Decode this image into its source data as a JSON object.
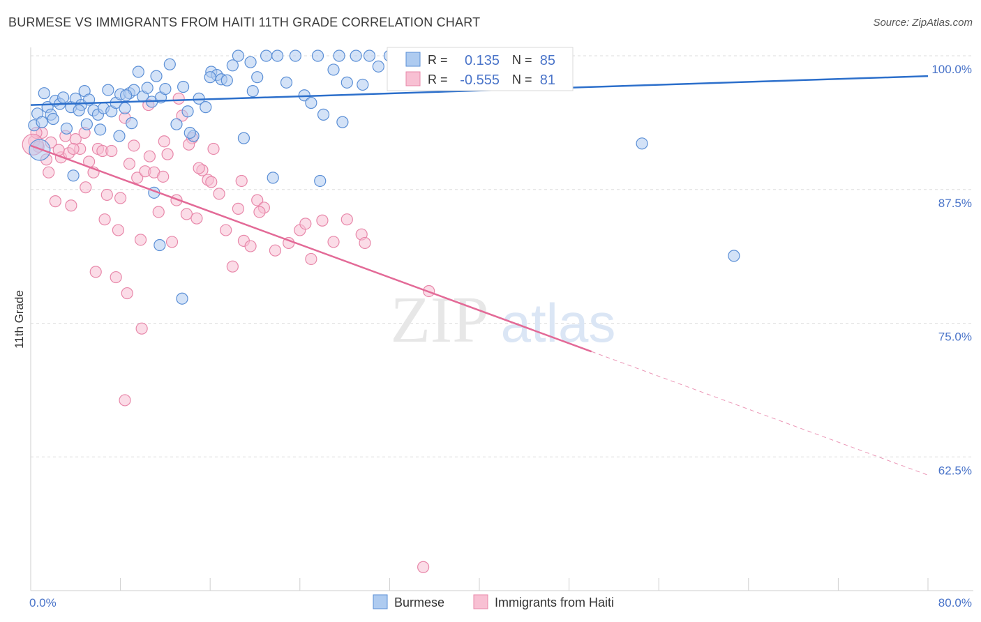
{
  "header": {
    "title": "BURMESE VS IMMIGRANTS FROM HAITI 11TH GRADE CORRELATION CHART",
    "source": "Source: ZipAtlas.com"
  },
  "watermark": {
    "zip": "ZIP",
    "atlas": "atlas"
  },
  "colors": {
    "burmese_fill": "#aecbf0",
    "burmese_stroke": "#5b8fd6",
    "burmese_line": "#2c6fcb",
    "haiti_fill": "#f8c0d3",
    "haiti_stroke": "#e888aa",
    "haiti_line": "#e36a97",
    "grid": "#dddddd",
    "axis_label": "#4a74c9"
  },
  "legend": {
    "rows": [
      {
        "r_label": "R =",
        "r_value": "0.135",
        "n_label": "N =",
        "n_value": "85"
      },
      {
        "r_label": "R =",
        "r_value": "-0.555",
        "n_label": "N =",
        "n_value": "81"
      }
    ]
  },
  "chart_data": {
    "type": "scatter",
    "title": "BURMESE VS IMMIGRANTS FROM HAITI 11TH GRADE CORRELATION CHART",
    "xlabel": "",
    "ylabel": "11th Grade",
    "xlim": [
      0,
      80
    ],
    "ylim": [
      50,
      100
    ],
    "x_ticks": [
      "0.0%",
      "80.0%"
    ],
    "y_ticks": [
      {
        "value": 100,
        "label": "100.0%"
      },
      {
        "value": 87.5,
        "label": "87.5%"
      },
      {
        "value": 75,
        "label": "75.0%"
      },
      {
        "value": 62.5,
        "label": "62.5%"
      }
    ],
    "grid": true,
    "legend_position": "top-center",
    "series": [
      {
        "name": "Burmese",
        "color": "#aecbf0",
        "trend": {
          "x": [
            0,
            80
          ],
          "y": [
            95.4,
            98.1
          ],
          "dashed_from": null
        },
        "points": [
          [
            0.3,
            93.5
          ],
          [
            0.6,
            94.6
          ],
          [
            1.0,
            93.8
          ],
          [
            1.5,
            95.2
          ],
          [
            1.8,
            94.5
          ],
          [
            2.2,
            95.8
          ],
          [
            2.6,
            95.5
          ],
          [
            2.9,
            96.1
          ],
          [
            3.2,
            93.2
          ],
          [
            3.6,
            95.2
          ],
          [
            4.0,
            96.0
          ],
          [
            4.5,
            95.4
          ],
          [
            4.8,
            96.7
          ],
          [
            5.2,
            95.9
          ],
          [
            5.6,
            94.9
          ],
          [
            6.0,
            94.5
          ],
          [
            6.5,
            95.1
          ],
          [
            6.9,
            96.8
          ],
          [
            7.2,
            94.8
          ],
          [
            7.6,
            95.6
          ],
          [
            8.0,
            96.4
          ],
          [
            8.4,
            95.1
          ],
          [
            8.8,
            96.5
          ],
          [
            9.2,
            96.8
          ],
          [
            9.6,
            98.5
          ],
          [
            10.0,
            96.2
          ],
          [
            10.4,
            97.0
          ],
          [
            10.8,
            95.7
          ],
          [
            11.2,
            98.1
          ],
          [
            11.6,
            96.1
          ],
          [
            12.0,
            96.9
          ],
          [
            12.4,
            99.2
          ],
          [
            13.0,
            93.6
          ],
          [
            13.6,
            97.1
          ],
          [
            14.0,
            94.8
          ],
          [
            14.5,
            92.5
          ],
          [
            15.0,
            96.0
          ],
          [
            15.6,
            95.2
          ],
          [
            16.1,
            98.5
          ],
          [
            16.6,
            98.2
          ],
          [
            17.0,
            97.8
          ],
          [
            17.5,
            97.7
          ],
          [
            18.0,
            99.1
          ],
          [
            18.5,
            100.0
          ],
          [
            19.0,
            92.3
          ],
          [
            19.6,
            99.4
          ],
          [
            20.2,
            98.0
          ],
          [
            21.0,
            100.0
          ],
          [
            22.0,
            100.0
          ],
          [
            22.8,
            97.5
          ],
          [
            23.6,
            100.0
          ],
          [
            24.4,
            96.3
          ],
          [
            25.0,
            95.6
          ],
          [
            25.6,
            100.0
          ],
          [
            26.1,
            94.5
          ],
          [
            27.0,
            98.7
          ],
          [
            27.5,
            100.0
          ],
          [
            28.2,
            97.5
          ],
          [
            29.0,
            100.0
          ],
          [
            29.6,
            97.3
          ],
          [
            30.2,
            100.0
          ],
          [
            31.0,
            99.0
          ],
          [
            32.0,
            100.0
          ],
          [
            33.0,
            100.0
          ],
          [
            34.2,
            100.0
          ],
          [
            1.2,
            96.5
          ],
          [
            2.0,
            94.1
          ],
          [
            3.8,
            88.8
          ],
          [
            4.3,
            94.9
          ],
          [
            5.0,
            93.6
          ],
          [
            6.2,
            93.1
          ],
          [
            7.9,
            92.5
          ],
          [
            8.5,
            96.3
          ],
          [
            9.0,
            93.7
          ],
          [
            11.0,
            87.2
          ],
          [
            11.5,
            82.3
          ],
          [
            13.5,
            77.3
          ],
          [
            14.2,
            92.8
          ],
          [
            16.0,
            98.0
          ],
          [
            19.8,
            96.7
          ],
          [
            21.6,
            88.6
          ],
          [
            25.8,
            88.3
          ],
          [
            27.8,
            93.8
          ],
          [
            54.5,
            91.8
          ],
          [
            62.7,
            81.3
          ],
          [
            0.8,
            91.2
          ]
        ]
      },
      {
        "name": "Immigrants from Haiti",
        "color": "#f8c0d3",
        "trend": {
          "x": [
            0,
            80
          ],
          "y": [
            91.6,
            60.8
          ],
          "dashed_from": 50
        },
        "points": [
          [
            0.3,
            92.0
          ],
          [
            0.7,
            91.5
          ],
          [
            1.0,
            92.8
          ],
          [
            1.4,
            90.3
          ],
          [
            1.8,
            91.9
          ],
          [
            2.2,
            86.4
          ],
          [
            2.7,
            90.5
          ],
          [
            3.1,
            92.5
          ],
          [
            3.4,
            90.9
          ],
          [
            3.6,
            86.0
          ],
          [
            4.0,
            92.2
          ],
          [
            4.4,
            91.3
          ],
          [
            4.8,
            92.8
          ],
          [
            5.2,
            90.1
          ],
          [
            5.6,
            89.1
          ],
          [
            6.0,
            91.3
          ],
          [
            6.4,
            91.1
          ],
          [
            6.8,
            87.0
          ],
          [
            7.2,
            91.1
          ],
          [
            7.6,
            79.3
          ],
          [
            8.0,
            86.7
          ],
          [
            8.4,
            94.2
          ],
          [
            8.8,
            89.9
          ],
          [
            9.2,
            91.6
          ],
          [
            9.5,
            88.6
          ],
          [
            9.8,
            82.8
          ],
          [
            10.2,
            89.2
          ],
          [
            10.6,
            90.6
          ],
          [
            11.0,
            89.1
          ],
          [
            11.4,
            85.4
          ],
          [
            11.8,
            88.7
          ],
          [
            12.2,
            90.8
          ],
          [
            12.6,
            82.6
          ],
          [
            13.0,
            86.5
          ],
          [
            13.5,
            94.4
          ],
          [
            13.9,
            85.2
          ],
          [
            14.4,
            92.3
          ],
          [
            14.8,
            84.8
          ],
          [
            15.3,
            89.3
          ],
          [
            15.8,
            88.4
          ],
          [
            16.3,
            91.3
          ],
          [
            16.8,
            87.1
          ],
          [
            17.4,
            83.7
          ],
          [
            18.0,
            80.3
          ],
          [
            18.5,
            85.7
          ],
          [
            19.0,
            82.7
          ],
          [
            19.6,
            82.2
          ],
          [
            20.2,
            86.5
          ],
          [
            20.8,
            85.8
          ],
          [
            21.8,
            81.8
          ],
          [
            23.0,
            82.5
          ],
          [
            24.0,
            83.7
          ],
          [
            25.0,
            81.0
          ],
          [
            26.0,
            84.6
          ],
          [
            27.0,
            82.6
          ],
          [
            28.2,
            84.7
          ],
          [
            29.5,
            83.3
          ],
          [
            0.5,
            92.8
          ],
          [
            1.6,
            89.1
          ],
          [
            2.5,
            91.2
          ],
          [
            3.8,
            91.3
          ],
          [
            4.9,
            87.7
          ],
          [
            5.8,
            79.8
          ],
          [
            6.6,
            84.7
          ],
          [
            7.8,
            83.7
          ],
          [
            8.6,
            77.8
          ],
          [
            9.9,
            74.5
          ],
          [
            10.5,
            95.4
          ],
          [
            11.9,
            92.0
          ],
          [
            13.2,
            96.0
          ],
          [
            14.1,
            91.7
          ],
          [
            15.0,
            89.5
          ],
          [
            16.1,
            88.2
          ],
          [
            18.8,
            88.3
          ],
          [
            20.4,
            85.4
          ],
          [
            24.5,
            84.3
          ],
          [
            29.8,
            82.5
          ],
          [
            35.5,
            78.0
          ],
          [
            8.4,
            67.8
          ],
          [
            35.0,
            52.2
          ],
          [
            0.2,
            91.7
          ]
        ]
      }
    ]
  },
  "bottom_legend": {
    "items": [
      {
        "label": "Burmese"
      },
      {
        "label": "Immigrants from Haiti"
      }
    ]
  }
}
